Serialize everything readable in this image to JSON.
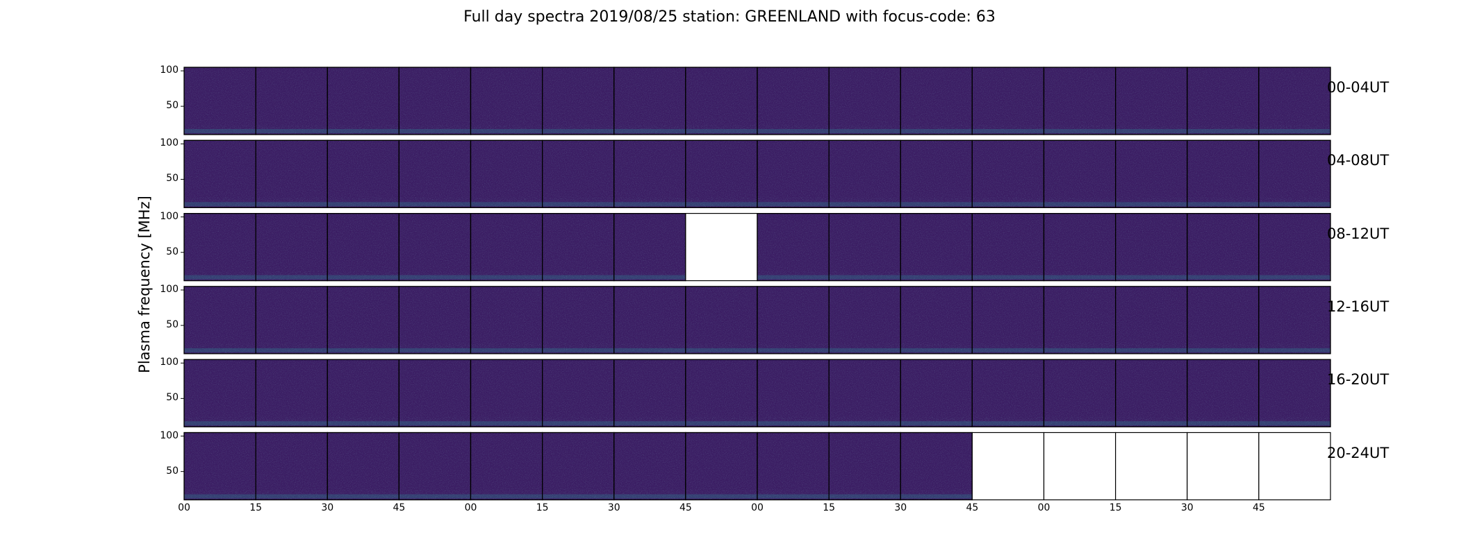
{
  "chart_data": {
    "type": "heatmap",
    "title": "Full day spectra 2019/08/25 station: GREENLAND with focus-code: 63",
    "ylabel": "Plasma frequency [MHz]",
    "ylim": [
      10,
      105
    ],
    "yticks": [
      "100",
      "50"
    ],
    "ytick_values": [
      100,
      50
    ],
    "xticks": [
      "00",
      "15",
      "30",
      "45",
      "00",
      "15",
      "30",
      "45",
      "00",
      "15",
      "30",
      "45",
      "00",
      "15",
      "30",
      "45"
    ],
    "panels_per_row": 16,
    "rows": [
      {
        "label": "00-04UT",
        "missing_panels": []
      },
      {
        "label": "04-08UT",
        "missing_panels": []
      },
      {
        "label": "08-12UT",
        "missing_panels": [
          7
        ]
      },
      {
        "label": "12-16UT",
        "missing_panels": []
      },
      {
        "label": "16-20UT",
        "missing_panels": []
      },
      {
        "label": "20-24UT",
        "missing_panels": [
          11,
          12,
          13,
          14,
          15
        ]
      }
    ],
    "colormap": "viridis",
    "colors": {
      "background_level": "#3b1d63",
      "noise_low": "#46256d",
      "noise_high": "#2c7f8e",
      "bright": "#35b779"
    }
  }
}
